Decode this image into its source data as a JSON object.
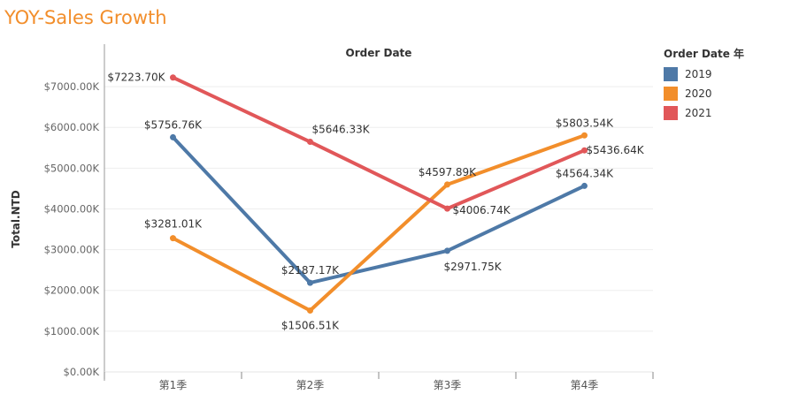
{
  "page": {
    "title": "YOY-Sales Growth"
  },
  "legend": {
    "title": "Order Date 年",
    "items": [
      {
        "label": "2019",
        "color": "#4e79a7"
      },
      {
        "label": "2020",
        "color": "#f28e2b"
      },
      {
        "label": "2021",
        "color": "#e15759"
      }
    ]
  },
  "chart_data": {
    "type": "line",
    "title": "",
    "xlabel": "Order Date",
    "ylabel": "Total.NTD",
    "categories": [
      "第1季",
      "第2季",
      "第3季",
      "第4季"
    ],
    "ylim": [
      0,
      7000
    ],
    "yticks": [
      0,
      1000,
      2000,
      3000,
      4000,
      5000,
      6000,
      7000
    ],
    "ytick_labels": [
      "$0.00K",
      "$1000.00K",
      "$2000.00K",
      "$3000.00K",
      "$4000.00K",
      "$5000.00K",
      "$6000.00K",
      "$7000.00K"
    ],
    "grid": true,
    "legend_position": "right",
    "series": [
      {
        "name": "2019",
        "color": "#4e79a7",
        "values": [
          5756.76,
          2187.17,
          2971.75,
          4564.34
        ],
        "labels": [
          "$5756.76K",
          "$2187.17K",
          "$2971.75K",
          "$4564.34K"
        ]
      },
      {
        "name": "2020",
        "color": "#f28e2b",
        "values": [
          3281.01,
          1506.51,
          4597.89,
          5803.54
        ],
        "labels": [
          "$3281.01K",
          "$1506.51K",
          "$4597.89K",
          "$5803.54K"
        ]
      },
      {
        "name": "2021",
        "color": "#e15759",
        "values": [
          7223.7,
          5646.33,
          4006.74,
          5436.64
        ],
        "labels": [
          "$7223.70K",
          "$5646.33K",
          "$4006.74K",
          "$5436.64K"
        ]
      }
    ]
  }
}
